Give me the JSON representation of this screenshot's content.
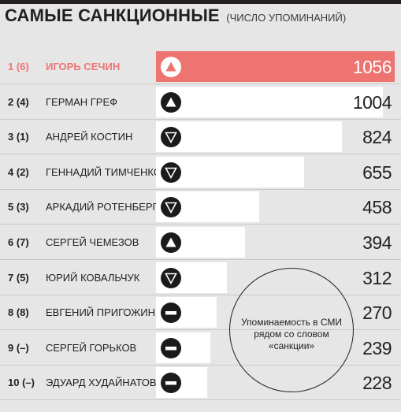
{
  "header": {
    "title": "САМЫЕ САНКЦИОННЫЕ",
    "subtitle": "(ЧИСЛО УПОМИНАНИЙ)"
  },
  "legend_note": "Упоминаемость в СМИ рядом со словом «санкции»",
  "colors": {
    "highlight": "#ee7471",
    "bar": "#ffffff",
    "background": "#e6e6e6",
    "icon": "#1b1b1b"
  },
  "chart_data": {
    "type": "bar",
    "orientation": "horizontal",
    "title": "САМЫЕ САНКЦИОННЫЕ",
    "subtitle": "(ЧИСЛО УПОМИНАНИЙ)",
    "xlim": [
      0,
      1056
    ],
    "categories": [
      "ИГОРЬ СЕЧИН",
      "ГЕРМАН ГРЕФ",
      "АНДРЕЙ КОСТИН",
      "ГЕННАДИЙ ТИМЧЕНКО",
      "АРКАДИЙ РОТЕНБЕРГ",
      "СЕРГЕЙ ЧЕМЕЗОВ",
      "ЮРИЙ КОВАЛЬЧУК",
      "ЕВГЕНИЙ ПРИГОЖИН",
      "СЕРГЕЙ ГОРЬКОВ",
      "ЭДУАРД ХУДАЙНАТОВ"
    ],
    "ranks": [
      "1 (6)",
      "2 (4)",
      "3 (1)",
      "4 (2)",
      "5 (3)",
      "6 (7)",
      "7 (5)",
      "8 (8)",
      "9 (–)",
      "10 (–)"
    ],
    "trend": [
      "up",
      "up",
      "down",
      "down",
      "down",
      "up",
      "down",
      "same",
      "same",
      "same"
    ],
    "values": [
      1056,
      1004,
      824,
      655,
      458,
      394,
      312,
      270,
      239,
      228
    ],
    "highlight_index": 0
  }
}
